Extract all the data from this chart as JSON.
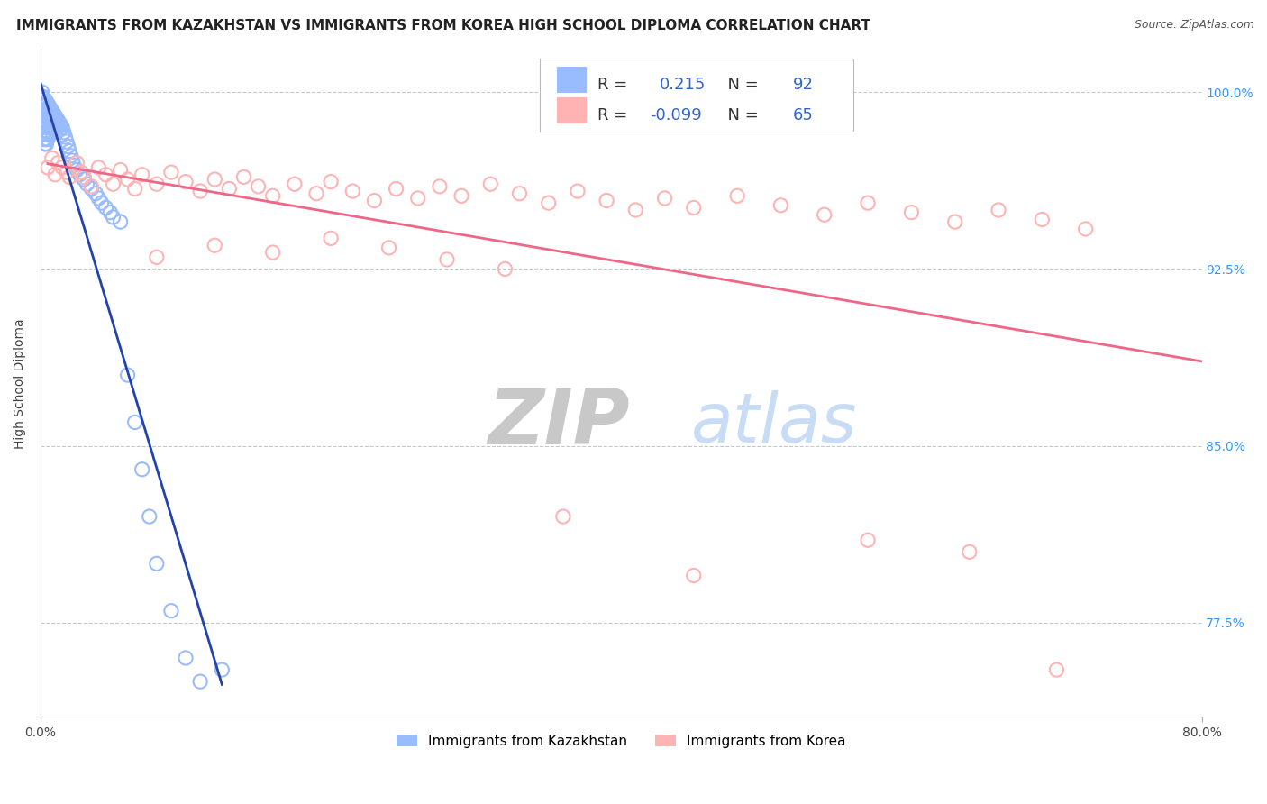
{
  "title": "IMMIGRANTS FROM KAZAKHSTAN VS IMMIGRANTS FROM KOREA HIGH SCHOOL DIPLOMA CORRELATION CHART",
  "source": "Source: ZipAtlas.com",
  "ylabel": "High School Diploma",
  "xlim": [
    0.0,
    0.8
  ],
  "ylim": [
    0.735,
    1.018
  ],
  "kaz_R": 0.215,
  "kaz_N": 92,
  "kor_R": -0.099,
  "kor_N": 65,
  "blue_color": "#99BBFF",
  "pink_color": "#FFB3B3",
  "blue_line_color": "#2244AA",
  "pink_line_color": "#EE6688",
  "watermark_ZIP_color": "#C8C8C8",
  "watermark_atlas_color": "#C8DDF5",
  "background_color": "#FFFFFF",
  "title_fontsize": 11,
  "source_fontsize": 9,
  "axis_label_fontsize": 10,
  "tick_fontsize": 10,
  "right_yticks": [
    0.775,
    0.85,
    0.925,
    1.0
  ],
  "right_yticklabels": [
    "77.5%",
    "85.0%",
    "92.5%",
    "100.0%"
  ],
  "grid_yticks": [
    0.775,
    0.85,
    0.925,
    1.0
  ],
  "kaz_x": [
    0.001,
    0.001,
    0.001,
    0.001,
    0.001,
    0.001,
    0.002,
    0.002,
    0.002,
    0.002,
    0.002,
    0.002,
    0.002,
    0.002,
    0.003,
    0.003,
    0.003,
    0.003,
    0.003,
    0.003,
    0.003,
    0.003,
    0.004,
    0.004,
    0.004,
    0.004,
    0.004,
    0.004,
    0.004,
    0.004,
    0.005,
    0.005,
    0.005,
    0.005,
    0.005,
    0.005,
    0.006,
    0.006,
    0.006,
    0.006,
    0.006,
    0.007,
    0.007,
    0.007,
    0.008,
    0.008,
    0.008,
    0.008,
    0.009,
    0.009,
    0.009,
    0.01,
    0.01,
    0.01,
    0.011,
    0.011,
    0.012,
    0.012,
    0.013,
    0.013,
    0.014,
    0.015,
    0.015,
    0.016,
    0.017,
    0.018,
    0.019,
    0.02,
    0.021,
    0.022,
    0.023,
    0.025,
    0.027,
    0.03,
    0.032,
    0.035,
    0.038,
    0.04,
    0.042,
    0.045,
    0.048,
    0.05,
    0.055,
    0.06,
    0.065,
    0.07,
    0.075,
    0.08,
    0.09,
    0.1,
    0.11,
    0.125
  ],
  "kaz_y": [
    1.0,
    0.998,
    0.995,
    0.992,
    0.99,
    0.987,
    0.998,
    0.995,
    0.992,
    0.99,
    0.987,
    0.985,
    0.982,
    0.98,
    0.997,
    0.994,
    0.991,
    0.988,
    0.985,
    0.982,
    0.98,
    0.978,
    0.996,
    0.993,
    0.99,
    0.987,
    0.985,
    0.982,
    0.98,
    0.978,
    0.995,
    0.992,
    0.989,
    0.986,
    0.983,
    0.98,
    0.994,
    0.991,
    0.988,
    0.985,
    0.982,
    0.993,
    0.99,
    0.987,
    0.992,
    0.989,
    0.986,
    0.983,
    0.991,
    0.988,
    0.985,
    0.99,
    0.987,
    0.984,
    0.989,
    0.986,
    0.988,
    0.985,
    0.987,
    0.984,
    0.986,
    0.985,
    0.982,
    0.983,
    0.981,
    0.979,
    0.977,
    0.975,
    0.973,
    0.971,
    0.969,
    0.967,
    0.965,
    0.963,
    0.961,
    0.959,
    0.957,
    0.955,
    0.953,
    0.951,
    0.949,
    0.947,
    0.945,
    0.88,
    0.86,
    0.84,
    0.82,
    0.8,
    0.78,
    0.76,
    0.75,
    0.755
  ],
  "kor_x": [
    0.005,
    0.008,
    0.01,
    0.012,
    0.015,
    0.018,
    0.02,
    0.025,
    0.028,
    0.03,
    0.035,
    0.04,
    0.045,
    0.05,
    0.055,
    0.06,
    0.065,
    0.07,
    0.08,
    0.09,
    0.1,
    0.11,
    0.12,
    0.13,
    0.14,
    0.15,
    0.16,
    0.175,
    0.19,
    0.2,
    0.215,
    0.23,
    0.245,
    0.26,
    0.275,
    0.29,
    0.31,
    0.33,
    0.35,
    0.37,
    0.39,
    0.41,
    0.43,
    0.45,
    0.48,
    0.51,
    0.54,
    0.57,
    0.6,
    0.63,
    0.66,
    0.69,
    0.72,
    0.08,
    0.12,
    0.16,
    0.2,
    0.24,
    0.28,
    0.32,
    0.36,
    0.45,
    0.57,
    0.64,
    0.7
  ],
  "kor_y": [
    0.968,
    0.972,
    0.965,
    0.97,
    0.968,
    0.966,
    0.964,
    0.97,
    0.966,
    0.964,
    0.96,
    0.968,
    0.965,
    0.961,
    0.967,
    0.963,
    0.959,
    0.965,
    0.961,
    0.966,
    0.962,
    0.958,
    0.963,
    0.959,
    0.964,
    0.96,
    0.956,
    0.961,
    0.957,
    0.962,
    0.958,
    0.954,
    0.959,
    0.955,
    0.96,
    0.956,
    0.961,
    0.957,
    0.953,
    0.958,
    0.954,
    0.95,
    0.955,
    0.951,
    0.956,
    0.952,
    0.948,
    0.953,
    0.949,
    0.945,
    0.95,
    0.946,
    0.942,
    0.93,
    0.935,
    0.932,
    0.938,
    0.934,
    0.929,
    0.925,
    0.82,
    0.795,
    0.81,
    0.805,
    0.755
  ]
}
